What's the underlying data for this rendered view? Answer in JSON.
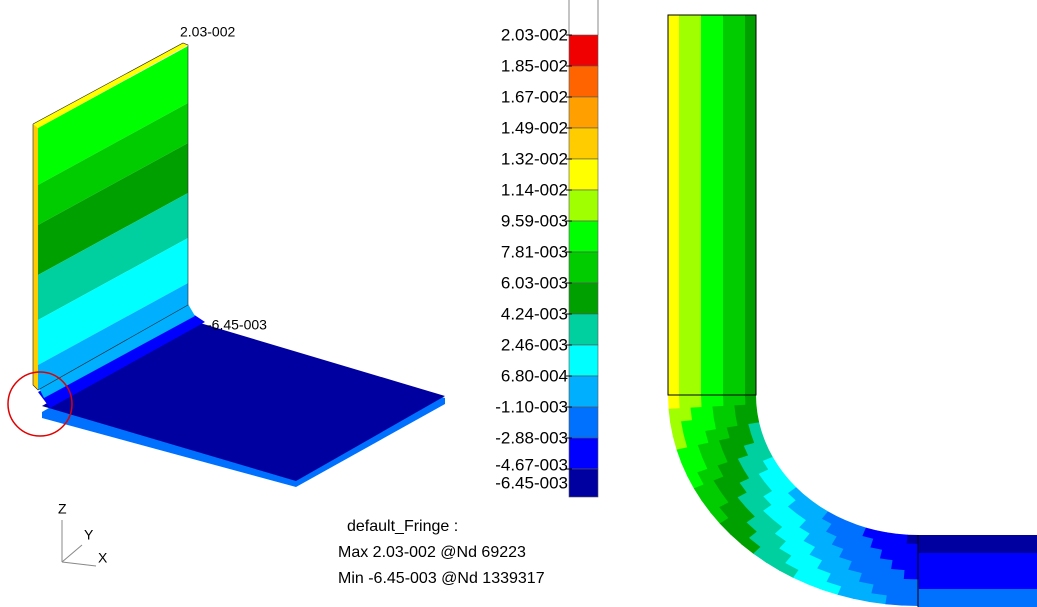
{
  "legend": {
    "labels": [
      "2.03-002",
      "1.85-002",
      "1.67-002",
      "1.49-002",
      "1.32-002",
      "1.14-002",
      "9.59-003",
      "7.81-003",
      "6.03-003",
      "4.24-003",
      "2.46-003",
      "6.80-004",
      "-1.10-003",
      "-2.88-003",
      "-4.67-003",
      "-6.45-003"
    ],
    "colors": [
      "#f00000",
      "#ff6400",
      "#ffa000",
      "#ffcc00",
      "#ffff00",
      "#a0ff00",
      "#00ff00",
      "#00cc00",
      "#00a000",
      "#00d0a0",
      "#00ffff",
      "#00b0ff",
      "#0070ff",
      "#0000ff",
      "#0000a0"
    ]
  },
  "annotations": {
    "max": "2.03-002",
    "min": "-6.45-003"
  },
  "triad": {
    "z": "Z",
    "y": "Y",
    "x": "X"
  },
  "fringe_info": {
    "title": "default_Fringe :",
    "max": "Max 2.03-002 @Nd 69223",
    "min": "Min -6.45-003 @Nd 1339317"
  }
}
